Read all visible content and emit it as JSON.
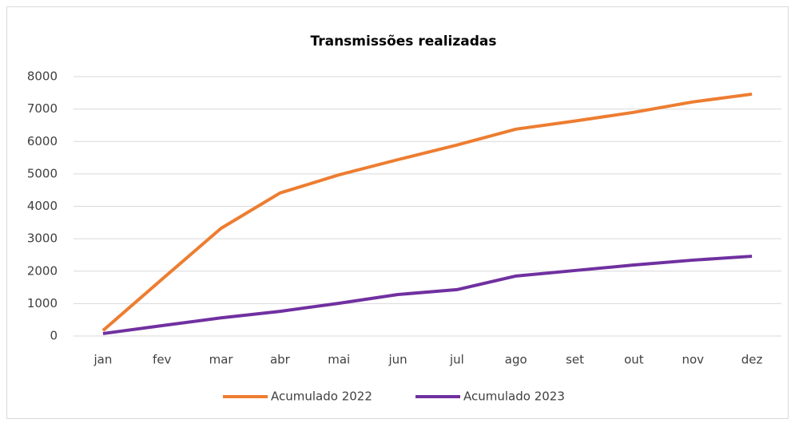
{
  "chart_data": {
    "type": "line",
    "title": "Transmissões realizadas",
    "categories": [
      "jan",
      "fev",
      "mar",
      "abr",
      "mai",
      "jun",
      "jul",
      "ago",
      "set",
      "out",
      "nov",
      "dez"
    ],
    "series": [
      {
        "name": "Acumulado 2022",
        "color": "#ed7d31",
        "values": [
          170,
          1750,
          3320,
          4410,
          4970,
          5440,
          5890,
          6380,
          6630,
          6900,
          7220,
          7460
        ]
      },
      {
        "name": "Acumulado 2023",
        "color": "#7030a0",
        "values": [
          75,
          320,
          560,
          760,
          1010,
          1280,
          1430,
          1850,
          2020,
          2190,
          2340,
          2460
        ]
      }
    ],
    "ylim": [
      0,
      8000
    ],
    "yticks": [
      0,
      1000,
      2000,
      3000,
      4000,
      5000,
      6000,
      7000,
      8000
    ],
    "grid": true,
    "legend": "bottom"
  }
}
